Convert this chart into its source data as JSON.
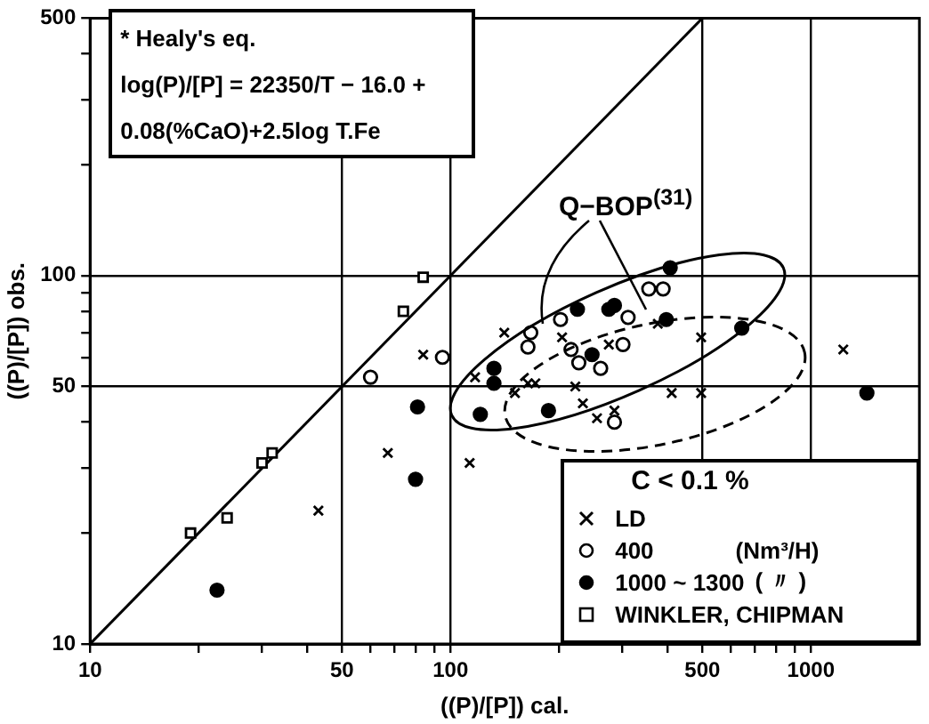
{
  "chart_data": {
    "type": "scatter",
    "xlabel": "((P)/[P]) cal.",
    "ylabel": "((P)/[P]) obs.",
    "xlim": [
      10,
      2000
    ],
    "ylim": [
      10,
      500
    ],
    "xticks": [
      10,
      {
        "value": 20,
        "label": null
      },
      {
        "value": 30,
        "label": null
      },
      {
        "value": 40,
        "label": null
      },
      50,
      {
        "value": 60,
        "label": null
      },
      {
        "value": 70,
        "label": null
      },
      {
        "value": 80,
        "label": null
      },
      {
        "value": 90,
        "label": null
      },
      100,
      {
        "value": 200,
        "label": null
      },
      {
        "value": 300,
        "label": null
      },
      {
        "value": 400,
        "label": null
      },
      500,
      {
        "value": 600,
        "label": null
      },
      {
        "value": 700,
        "label": null
      },
      {
        "value": 800,
        "label": null
      },
      {
        "value": 900,
        "label": null
      },
      1000
    ],
    "yticks": [
      10,
      {
        "value": 20,
        "label": null
      },
      {
        "value": 30,
        "label": null
      },
      {
        "value": 40,
        "label": null
      },
      50,
      {
        "value": 60,
        "label": null
      },
      {
        "value": 70,
        "label": null
      },
      {
        "value": 80,
        "label": null
      },
      {
        "value": 90,
        "label": null
      },
      100,
      {
        "value": 200,
        "label": null
      },
      {
        "value": 300,
        "label": null
      },
      {
        "value": 400,
        "label": null
      },
      500
    ],
    "log": "xy",
    "grid": true,
    "legend": "bottom right",
    "legend_title": "C < 0.1 %",
    "series": [
      {
        "name": "LD",
        "color": "#000000",
        "marker": "cross",
        "x": [
          43,
          67,
          84,
          113,
          117,
          141,
          151,
          164,
          172,
          204,
          222,
          233,
          255,
          285,
          275,
          376,
          411,
          496,
          496,
          1230
        ],
        "values": [
          23,
          33,
          61,
          31,
          53,
          70,
          48,
          51,
          51,
          68,
          50,
          45,
          41,
          43,
          65,
          74,
          48,
          48,
          68,
          63
        ]
      },
      {
        "name": "400",
        "color": "#ffffff",
        "marker": "circle",
        "x": [
          60,
          95,
          167,
          164,
          202,
          216,
          227,
          261,
          301,
          311,
          355,
          389,
          285
        ],
        "values": [
          53,
          60,
          70,
          64,
          76,
          63,
          58,
          56,
          65,
          77,
          92,
          92,
          40
        ]
      },
      {
        "name": "1000 ~ 1300",
        "color": "#000000",
        "marker": "circle",
        "x": [
          22.5,
          81,
          80,
          121,
          132,
          132,
          187,
          225,
          247,
          275,
          285,
          407,
          397,
          643,
          1430
        ],
        "values": [
          14,
          44,
          28,
          42,
          56,
          51,
          43,
          81,
          61,
          81,
          83,
          105,
          76,
          72,
          48
        ]
      },
      {
        "name": "WINKLER, CHIPMAN",
        "color": "#ffffff",
        "marker": "square",
        "x": [
          19,
          24,
          30,
          32,
          74,
          84
        ],
        "values": [
          20,
          22,
          31,
          33,
          80,
          99
        ]
      },
      {
        "type": "line",
        "color": "#000000",
        "marker": "none",
        "x": [
          10,
          500
        ],
        "values": [
          10,
          500
        ]
      }
    ],
    "annotations": [
      "* Healy's eq.",
      "log(P)/[P] = 22350/T − 16.0 +",
      "0.08(%CaO)+2.5log T.Fe",
      "Q−BOP$^{(31)}$",
      "(Nm³/H)",
      "( 〃 )"
    ]
  }
}
